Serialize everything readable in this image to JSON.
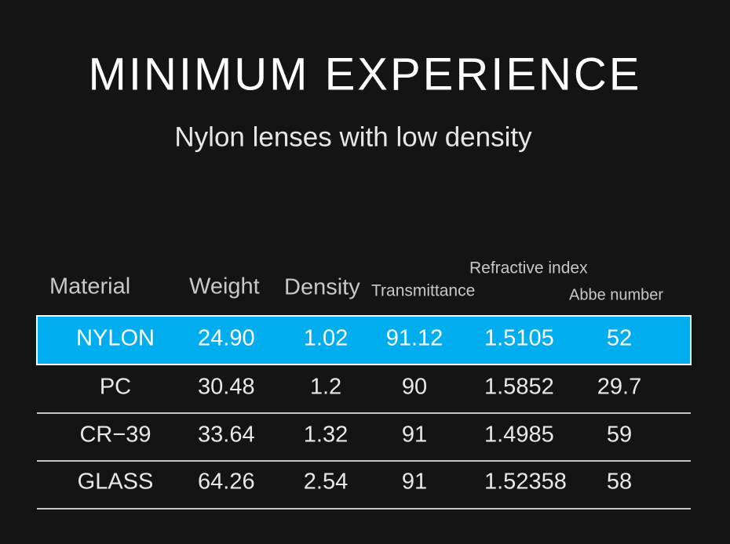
{
  "header": {
    "title": "MINIMUM EXPERIENCE",
    "subtitle": "Nylon lenses with low density"
  },
  "table": {
    "columns": [
      "Material",
      "Weight",
      "Density",
      "Transmittance",
      "Refractive index",
      "Abbe number"
    ],
    "rows": [
      [
        "NYLON",
        "24.90",
        "1.02",
        "91.12",
        "1.5105",
        "52"
      ],
      [
        "PC",
        "30.48",
        "1.2",
        "90",
        "1.5852",
        "29.7"
      ],
      [
        "CR−39",
        "33.64",
        "1.32",
        "91",
        "1.4985",
        "59"
      ],
      [
        "GLASS",
        "64.26",
        "2.54",
        "91",
        "1.52358",
        "58"
      ]
    ]
  }
}
